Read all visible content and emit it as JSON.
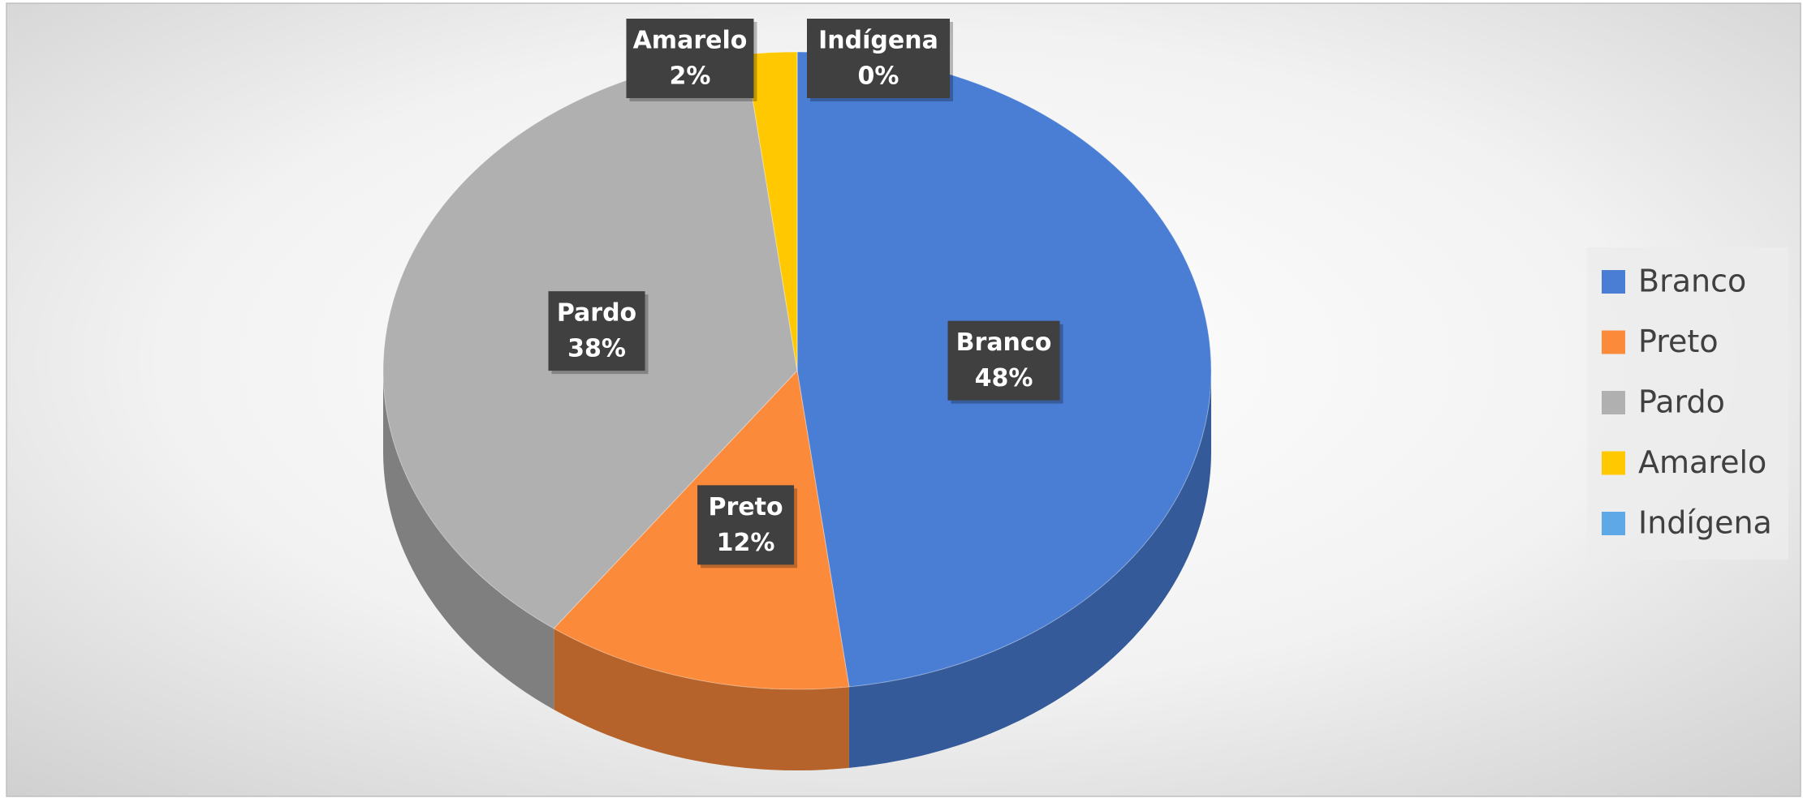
{
  "chart_data": {
    "type": "pie",
    "categories": [
      "Branco",
      "Preto",
      "Pardo",
      "Amarelo",
      "Indígena"
    ],
    "values": [
      48,
      12,
      38,
      2,
      0
    ],
    "value_labels": [
      "48%",
      "12%",
      "38%",
      "2%",
      "0%"
    ],
    "colors": [
      "#4a7dd4",
      "#fb8a3a",
      "#b0b0b0",
      "#ffc800",
      "#5ea8e8"
    ],
    "legend": "right"
  }
}
